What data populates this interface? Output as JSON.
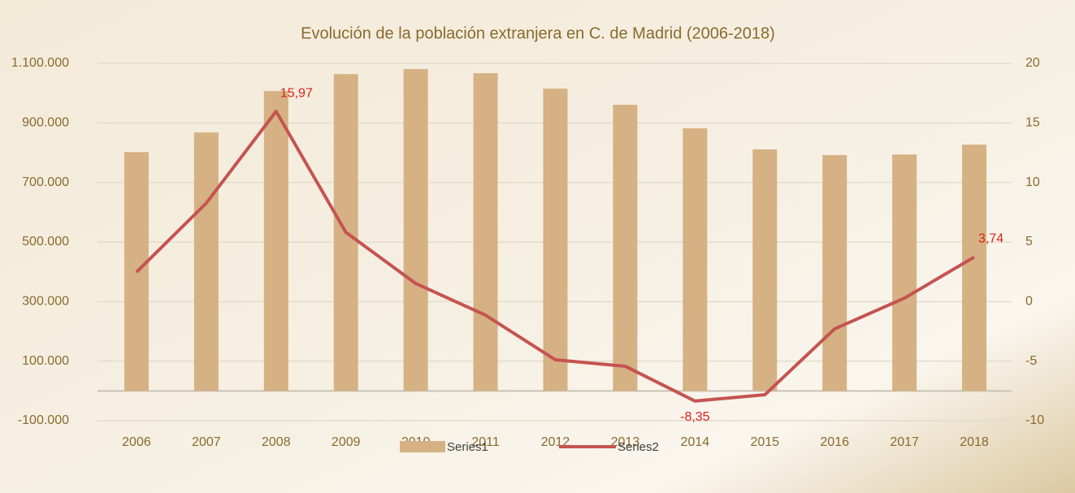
{
  "chart_data": {
    "type": "bar",
    "title": "Evolución de la población extranjera en C. de Madrid (2006-2018)",
    "categories": [
      "2006",
      "2007",
      "2008",
      "2009",
      "2010",
      "2011",
      "2012",
      "2013",
      "2014",
      "2015",
      "2016",
      "2017",
      "2018"
    ],
    "series": [
      {
        "name": "Series1",
        "type": "bar",
        "axis": "y",
        "color": "#d5b184",
        "values": [
          802000,
          868000,
          1007000,
          1064000,
          1081000,
          1067000,
          1015000,
          961000,
          882000,
          811000,
          792000,
          794000,
          827000
        ]
      },
      {
        "name": "Series2",
        "type": "line",
        "axis": "y2",
        "color": "#c55451",
        "values": [
          2.47,
          8.27,
          15.97,
          5.81,
          1.52,
          -1.14,
          -4.89,
          -5.43,
          -8.35,
          -7.82,
          -2.29,
          0.29,
          3.74
        ],
        "value_labels": [
          null,
          null,
          "15,97",
          null,
          null,
          null,
          null,
          null,
          "-8,35",
          null,
          null,
          null,
          "3,74"
        ]
      }
    ],
    "ylim": [
      -100000,
      1100000
    ],
    "yticks": [
      {
        "value": -100000,
        "label": "-100.000"
      },
      {
        "value": 100000,
        "label": "100.000"
      },
      {
        "value": 300000,
        "label": "300.000"
      },
      {
        "value": 500000,
        "label": "500.000"
      },
      {
        "value": 700000,
        "label": "700.000"
      },
      {
        "value": 900000,
        "label": "900.000"
      },
      {
        "value": 1100000,
        "label": "1.100.000"
      }
    ],
    "y2lim": [
      -10,
      20
    ],
    "y2ticks": [
      -10,
      -5,
      0,
      5,
      10,
      15,
      20
    ],
    "grid": true,
    "legend": "bottom"
  }
}
